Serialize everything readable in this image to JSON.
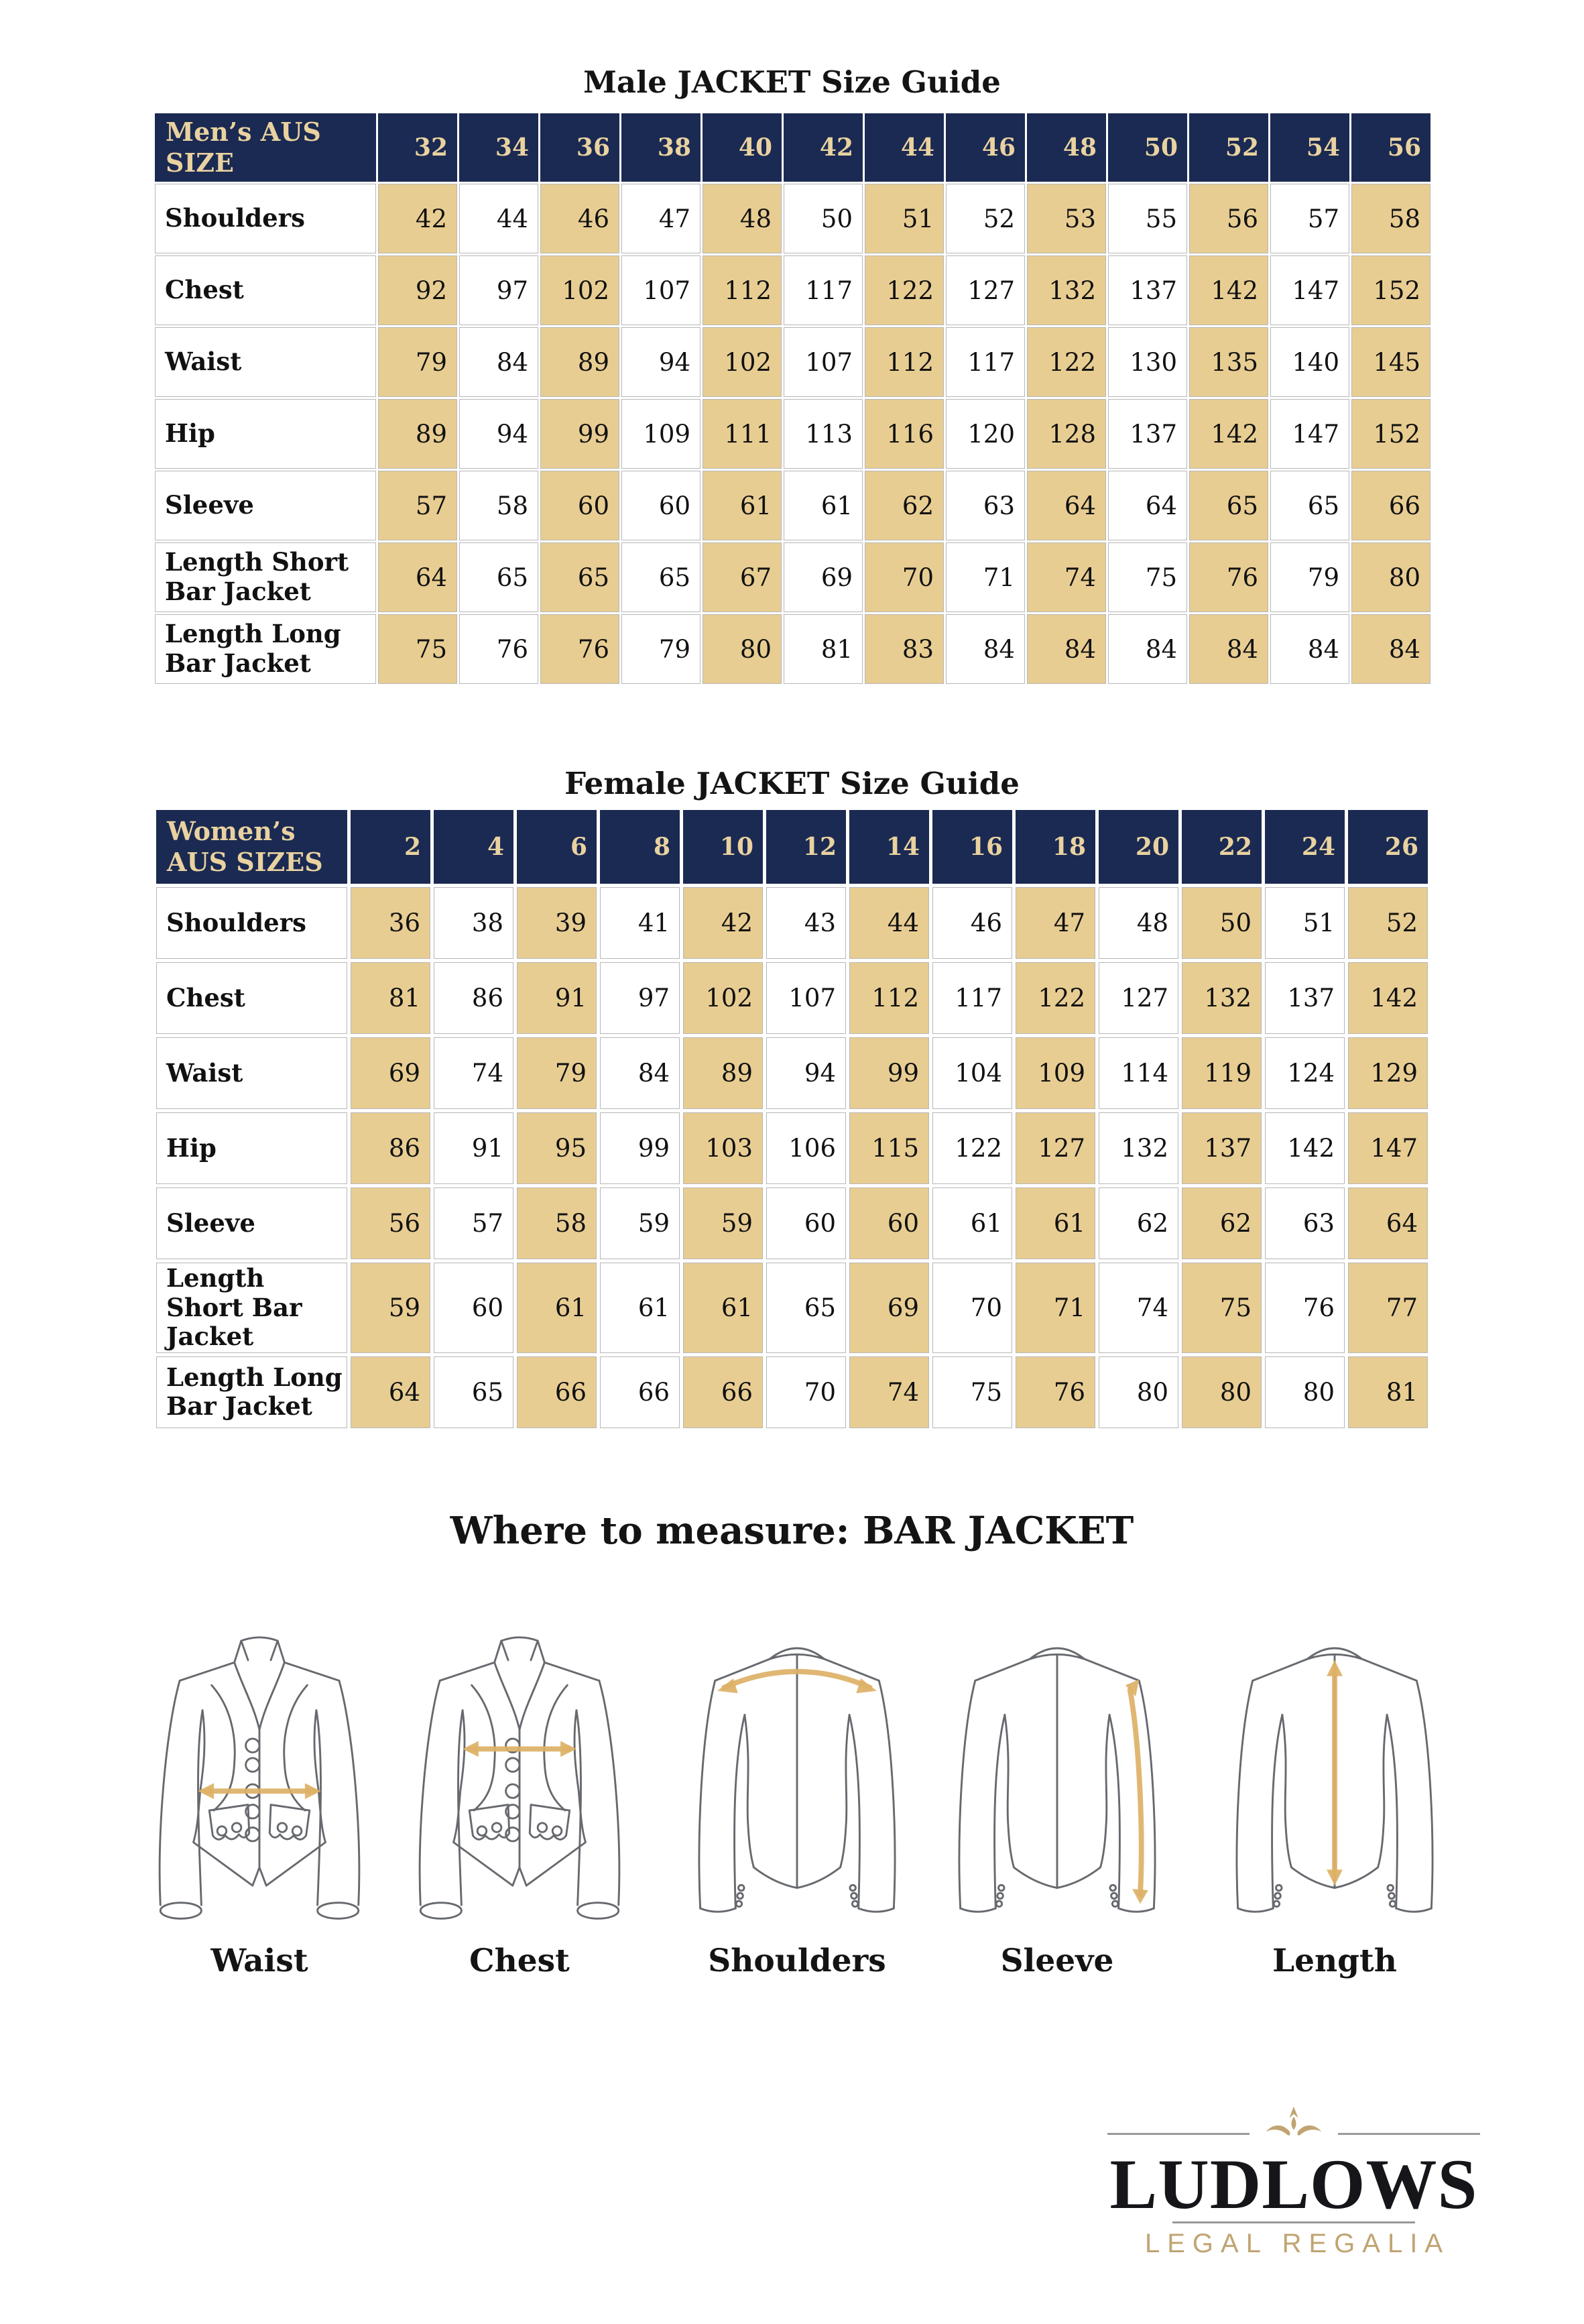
{
  "page": {
    "title_male": "Male JACKET Size Guide",
    "title_female": "Female JACKET Size Guide",
    "title_measure": "Where to measure: BAR JACKET"
  },
  "colors": {
    "navy_header": "#1b2a52",
    "gold_header_text": "#e9d2a0",
    "tan_stripe": "#e8cd92",
    "arrow_gold": "#ddb166",
    "logo_gold": "#c0a472",
    "border_gray": "#b7b7b7"
  },
  "male_table": {
    "header_label": "Men’s AUS SIZE",
    "sizes": [
      "32",
      "34",
      "36",
      "38",
      "40",
      "42",
      "44",
      "46",
      "48",
      "50",
      "52",
      "54",
      "56"
    ],
    "rows": [
      {
        "label": "Shoulders",
        "values": [
          "42",
          "44",
          "46",
          "47",
          "48",
          "50",
          "51",
          "52",
          "53",
          "55",
          "56",
          "57",
          "58"
        ]
      },
      {
        "label": "Chest",
        "values": [
          "92",
          "97",
          "102",
          "107",
          "112",
          "117",
          "122",
          "127",
          "132",
          "137",
          "142",
          "147",
          "152"
        ]
      },
      {
        "label": "Waist",
        "values": [
          "79",
          "84",
          "89",
          "94",
          "102",
          "107",
          "112",
          "117",
          "122",
          "130",
          "135",
          "140",
          "145"
        ]
      },
      {
        "label": "Hip",
        "values": [
          "89",
          "94",
          "99",
          "109",
          "111",
          "113",
          "116",
          "120",
          "128",
          "137",
          "142",
          "147",
          "152"
        ]
      },
      {
        "label": "Sleeve",
        "values": [
          "57",
          "58",
          "60",
          "60",
          "61",
          "61",
          "62",
          "63",
          "64",
          "64",
          "65",
          "65",
          "66"
        ]
      },
      {
        "label": "Length Short Bar Jacket",
        "values": [
          "64",
          "65",
          "65",
          "65",
          "67",
          "69",
          "70",
          "71",
          "74",
          "75",
          "76",
          "79",
          "80"
        ]
      },
      {
        "label": "Length Long Bar Jacket",
        "values": [
          "75",
          "76",
          "76",
          "79",
          "80",
          "81",
          "83",
          "84",
          "84",
          "84",
          "84",
          "84",
          "84"
        ]
      }
    ]
  },
  "female_table": {
    "header_label": "Women’s AUS SIZES",
    "sizes": [
      "2",
      "4",
      "6",
      "8",
      "10",
      "12",
      "14",
      "16",
      "18",
      "20",
      "22",
      "24",
      "26"
    ],
    "rows": [
      {
        "label": "Shoulders",
        "values": [
          "36",
          "38",
          "39",
          "41",
          "42",
          "43",
          "44",
          "46",
          "47",
          "48",
          "50",
          "51",
          "52"
        ]
      },
      {
        "label": "Chest",
        "values": [
          "81",
          "86",
          "91",
          "97",
          "102",
          "107",
          "112",
          "117",
          "122",
          "127",
          "132",
          "137",
          "142"
        ]
      },
      {
        "label": "Waist",
        "values": [
          "69",
          "74",
          "79",
          "84",
          "89",
          "94",
          "99",
          "104",
          "109",
          "114",
          "119",
          "124",
          "129"
        ]
      },
      {
        "label": "Hip",
        "values": [
          "86",
          "91",
          "95",
          "99",
          "103",
          "106",
          "115",
          "122",
          "127",
          "132",
          "137",
          "142",
          "147"
        ]
      },
      {
        "label": "Sleeve",
        "values": [
          "56",
          "57",
          "58",
          "59",
          "59",
          "60",
          "60",
          "61",
          "61",
          "62",
          "62",
          "63",
          "64"
        ]
      },
      {
        "label": "Length Short Bar Jacket",
        "values": [
          "59",
          "60",
          "61",
          "61",
          "61",
          "65",
          "69",
          "70",
          "71",
          "74",
          "75",
          "76",
          "77"
        ]
      },
      {
        "label": "Length Long Bar Jacket",
        "values": [
          "64",
          "65",
          "66",
          "66",
          "66",
          "70",
          "74",
          "75",
          "76",
          "80",
          "80",
          "80",
          "81"
        ]
      }
    ]
  },
  "measure": {
    "figures": [
      {
        "label": "Waist",
        "view": "front",
        "measure": "waist"
      },
      {
        "label": "Chest",
        "view": "front",
        "measure": "chest"
      },
      {
        "label": "Shoulders",
        "view": "back",
        "measure": "shoulders"
      },
      {
        "label": "Sleeve",
        "view": "back",
        "measure": "sleeve"
      },
      {
        "label": "Length",
        "view": "back",
        "measure": "length"
      }
    ]
  },
  "logo": {
    "name": "LUDLOWS",
    "tagline": "LEGAL REGALIA"
  }
}
